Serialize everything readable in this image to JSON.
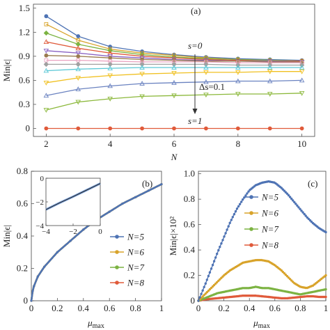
{
  "chart_data": [
    {
      "panel_label": "(a)",
      "type": "line",
      "xlabel": "N",
      "ylabel": "Min|ϵ|",
      "xlim": [
        1.6,
        10.4
      ],
      "ylim": [
        -0.1,
        1.55
      ],
      "xticks": [
        2,
        4,
        6,
        8,
        10
      ],
      "yticks": [
        0,
        0.3,
        0.6,
        0.9,
        1.2,
        1.5
      ],
      "ytick_labels": [
        "0",
        "0.3",
        "0.6",
        "0.9",
        "1.2",
        "1.5"
      ],
      "x": [
        2,
        3,
        4,
        5,
        6,
        7,
        8,
        9,
        10
      ],
      "annotations": {
        "top": "s=0",
        "middle": "Δs=0.1",
        "bottom": "s=1"
      },
      "series": [
        {
          "color": "#4e73b4",
          "marker": "circle",
          "values": [
            1.4,
            1.15,
            1.02,
            0.96,
            0.92,
            0.89,
            0.87,
            0.86,
            0.85
          ]
        },
        {
          "color": "#d8a32a",
          "marker": "square",
          "values": [
            1.3,
            1.1,
            0.99,
            0.94,
            0.91,
            0.88,
            0.86,
            0.85,
            0.84
          ]
        },
        {
          "color": "#7cb342",
          "marker": "diamond",
          "values": [
            1.19,
            1.05,
            0.97,
            0.92,
            0.89,
            0.87,
            0.86,
            0.85,
            0.84
          ]
        },
        {
          "color": "#e05a3a",
          "marker": "triangle-up",
          "values": [
            1.08,
            1.0,
            0.94,
            0.9,
            0.88,
            0.86,
            0.85,
            0.84,
            0.84
          ]
        },
        {
          "color": "#8a62c2",
          "marker": "triangle-down",
          "values": [
            0.97,
            0.94,
            0.9,
            0.88,
            0.86,
            0.85,
            0.84,
            0.84,
            0.83
          ]
        },
        {
          "color": "#9a7b4f",
          "marker": "circle",
          "values": [
            0.91,
            0.9,
            0.88,
            0.86,
            0.85,
            0.84,
            0.84,
            0.83,
            0.83
          ]
        },
        {
          "color": "#e9a3c0",
          "marker": "square",
          "values": [
            0.85,
            0.85,
            0.84,
            0.83,
            0.83,
            0.83,
            0.82,
            0.82,
            0.82
          ]
        },
        {
          "color": "#a0a0a0",
          "marker": "diamond",
          "values": [
            0.8,
            0.8,
            0.8,
            0.8,
            0.8,
            0.8,
            0.79,
            0.79,
            0.79
          ]
        },
        {
          "color": "#5bc8d6",
          "marker": "triangle-up",
          "values": [
            0.72,
            0.74,
            0.75,
            0.76,
            0.76,
            0.76,
            0.76,
            0.76,
            0.76
          ]
        },
        {
          "color": "#f0c020",
          "marker": "triangle-down",
          "values": [
            0.57,
            0.63,
            0.66,
            0.68,
            0.69,
            0.7,
            0.7,
            0.71,
            0.71
          ]
        },
        {
          "color": "#6a82c0",
          "marker": "triangle-up",
          "values": [
            0.41,
            0.49,
            0.53,
            0.56,
            0.57,
            0.58,
            0.59,
            0.59,
            0.6
          ]
        },
        {
          "color": "#8bb83a",
          "marker": "triangle-down",
          "values": [
            0.23,
            0.33,
            0.37,
            0.4,
            0.41,
            0.42,
            0.43,
            0.43,
            0.44
          ]
        },
        {
          "color": "#e05a3a",
          "marker": "circle",
          "values": [
            0.0,
            0.0,
            0.0,
            0.0,
            0.0,
            0.0,
            0.0,
            0.0,
            0.0
          ]
        }
      ]
    },
    {
      "panel_label": "(b)",
      "type": "line",
      "xlabel": "μmax",
      "xlabel_main": "μ",
      "xlabel_sub": "max",
      "ylabel": "Min|ϵ|",
      "xlim": [
        0,
        1
      ],
      "ylim": [
        0,
        0.8
      ],
      "xticks": [
        0,
        0.2,
        0.4,
        0.6,
        0.8,
        1
      ],
      "xtick_labels": [
        "0",
        "0.2",
        "0.4",
        "0.6",
        "0.8",
        "1"
      ],
      "yticks": [
        0,
        0.2,
        0.4,
        0.6,
        0.8
      ],
      "ytick_labels": [
        "0",
        "0.2",
        "0.4",
        "0.6",
        "0.8"
      ],
      "series": [
        {
          "name": "N=5",
          "color": "#4e73b4",
          "x": [
            0,
            0.01,
            0.02,
            0.05,
            0.1,
            0.2,
            0.3,
            0.4,
            0.5,
            0.6,
            0.7,
            0.8,
            0.9,
            1.0
          ],
          "values": [
            0,
            0.06,
            0.09,
            0.15,
            0.21,
            0.3,
            0.37,
            0.44,
            0.5,
            0.55,
            0.6,
            0.64,
            0.68,
            0.72
          ]
        },
        {
          "name": "N=6",
          "color": "#d8a32a",
          "x": [
            0,
            0.01,
            0.02,
            0.05,
            0.1,
            0.2,
            0.3,
            0.4,
            0.5,
            0.6,
            0.7,
            0.8,
            0.9,
            1.0
          ],
          "values": [
            0,
            0.06,
            0.09,
            0.15,
            0.21,
            0.3,
            0.37,
            0.44,
            0.5,
            0.55,
            0.6,
            0.64,
            0.68,
            0.72
          ]
        },
        {
          "name": "N=7",
          "color": "#7cb342",
          "x": [
            0,
            0.01,
            0.02,
            0.05,
            0.1,
            0.2,
            0.3,
            0.4,
            0.5,
            0.6,
            0.7,
            0.8,
            0.9,
            1.0
          ],
          "values": [
            0,
            0.06,
            0.09,
            0.15,
            0.21,
            0.3,
            0.37,
            0.44,
            0.5,
            0.55,
            0.6,
            0.64,
            0.68,
            0.72
          ]
        },
        {
          "name": "N=8",
          "color": "#e05a3a",
          "x": [
            0,
            0.01,
            0.02,
            0.05,
            0.1,
            0.2,
            0.3,
            0.4,
            0.5,
            0.6,
            0.7,
            0.8,
            0.9,
            1.0
          ],
          "values": [
            0,
            0.06,
            0.09,
            0.15,
            0.21,
            0.3,
            0.37,
            0.44,
            0.5,
            0.55,
            0.6,
            0.64,
            0.68,
            0.72
          ]
        }
      ],
      "inset": {
        "type": "line",
        "xlim": [
          -4,
          0
        ],
        "ylim": [
          -4,
          0
        ],
        "xticks": [
          -4,
          -2,
          0
        ],
        "xtick_labels": [
          "−4",
          "−2",
          "0"
        ],
        "yticks": [
          -4,
          -2,
          0
        ],
        "ytick_labels": [
          "−4",
          "−2",
          "0"
        ],
        "x": [
          -4,
          -3,
          -2,
          -1,
          0
        ],
        "values": [
          -2.65,
          -2.08,
          -1.55,
          -1.0,
          -0.45
        ]
      }
    },
    {
      "panel_label": "(c)",
      "type": "line",
      "xlabel": "μmax",
      "xlabel_main": "μ",
      "xlabel_sub": "max",
      "ylabel": "Min|ϵ|×10²",
      "xlim": [
        0,
        1
      ],
      "ylim": [
        0,
        1.02
      ],
      "xticks": [
        0,
        0.2,
        0.4,
        0.6,
        0.8,
        1
      ],
      "xtick_labels": [
        "0",
        "0.2",
        "0.4",
        "0.6",
        "0.8",
        "1"
      ],
      "yticks": [
        0,
        0.2,
        0.4,
        0.6,
        0.8,
        1.0
      ],
      "ytick_labels": [
        "0",
        "0.2",
        "0.4",
        "0.6",
        "0.8",
        "1.0"
      ],
      "series": [
        {
          "name": "N=5",
          "color": "#4e73b4",
          "x": [
            0,
            0.05,
            0.1,
            0.15,
            0.2,
            0.25,
            0.3,
            0.35,
            0.4,
            0.45,
            0.5,
            0.55,
            0.6,
            0.65,
            0.7,
            0.75,
            0.8,
            0.85,
            0.9,
            0.95,
            1.0
          ],
          "values": [
            0,
            0.12,
            0.25,
            0.38,
            0.5,
            0.62,
            0.72,
            0.8,
            0.87,
            0.91,
            0.93,
            0.94,
            0.93,
            0.89,
            0.84,
            0.78,
            0.72,
            0.66,
            0.61,
            0.57,
            0.54
          ]
        },
        {
          "name": "N=6",
          "color": "#d8a32a",
          "x": [
            0,
            0.05,
            0.1,
            0.15,
            0.2,
            0.25,
            0.3,
            0.35,
            0.4,
            0.45,
            0.5,
            0.55,
            0.6,
            0.65,
            0.7,
            0.75,
            0.8,
            0.85,
            0.9,
            0.95,
            1.0
          ],
          "values": [
            0,
            0.05,
            0.1,
            0.15,
            0.2,
            0.24,
            0.27,
            0.3,
            0.31,
            0.32,
            0.32,
            0.31,
            0.28,
            0.24,
            0.19,
            0.14,
            0.11,
            0.1,
            0.12,
            0.16,
            0.2
          ]
        },
        {
          "name": "N=7",
          "color": "#7cb342",
          "x": [
            0,
            0.05,
            0.1,
            0.15,
            0.2,
            0.25,
            0.3,
            0.35,
            0.4,
            0.45,
            0.5,
            0.55,
            0.6,
            0.65,
            0.7,
            0.75,
            0.8,
            0.85,
            0.9,
            0.95,
            1.0
          ],
          "values": [
            0,
            0.02,
            0.04,
            0.06,
            0.07,
            0.08,
            0.09,
            0.1,
            0.1,
            0.11,
            0.1,
            0.1,
            0.09,
            0.08,
            0.07,
            0.06,
            0.05,
            0.06,
            0.07,
            0.08,
            0.09
          ]
        },
        {
          "name": "N=8",
          "color": "#e05a3a",
          "x": [
            0,
            0.05,
            0.1,
            0.15,
            0.2,
            0.25,
            0.3,
            0.35,
            0.4,
            0.45,
            0.5,
            0.55,
            0.6,
            0.65,
            0.7,
            0.75,
            0.8,
            0.85,
            0.9,
            0.95,
            1.0
          ],
          "values": [
            0,
            0.01,
            0.015,
            0.02,
            0.025,
            0.03,
            0.035,
            0.04,
            0.04,
            0.04,
            0.035,
            0.03,
            0.025,
            0.02,
            0.02,
            0.025,
            0.03,
            0.035,
            0.035,
            0.03,
            0.03
          ]
        }
      ]
    }
  ]
}
